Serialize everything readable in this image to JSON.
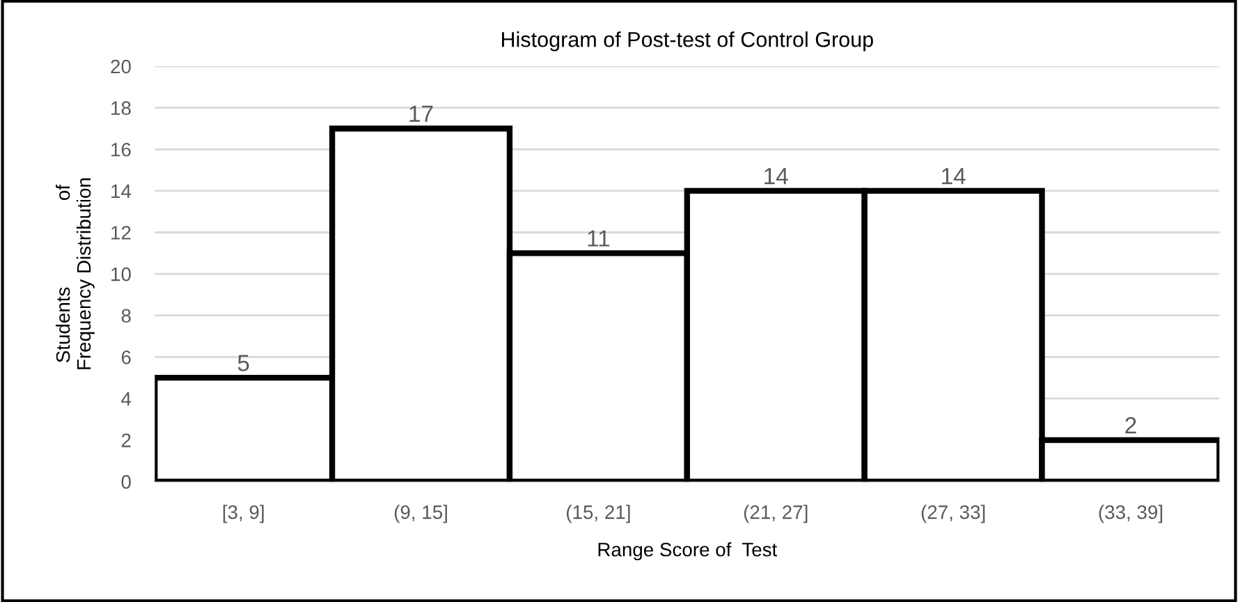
{
  "chart_data": {
    "type": "bar",
    "title": "Histogram of Post-test of Control Group",
    "xlabel": "Range Score of  Test",
    "ylabel": "Students                of\nFrequency Distribution",
    "categories": [
      "[3, 9]",
      "(9, 15]",
      "(15, 21]",
      "(21, 27]",
      "(27, 33]",
      "(33, 39]"
    ],
    "values": [
      5,
      17,
      11,
      14,
      14,
      2
    ],
    "color": "#ffffff",
    "ylim": [
      0,
      20
    ],
    "yticks": [
      0,
      2,
      4,
      6,
      8,
      10,
      12,
      14,
      16,
      18,
      20
    ],
    "grid": "y",
    "data_labels": true
  }
}
